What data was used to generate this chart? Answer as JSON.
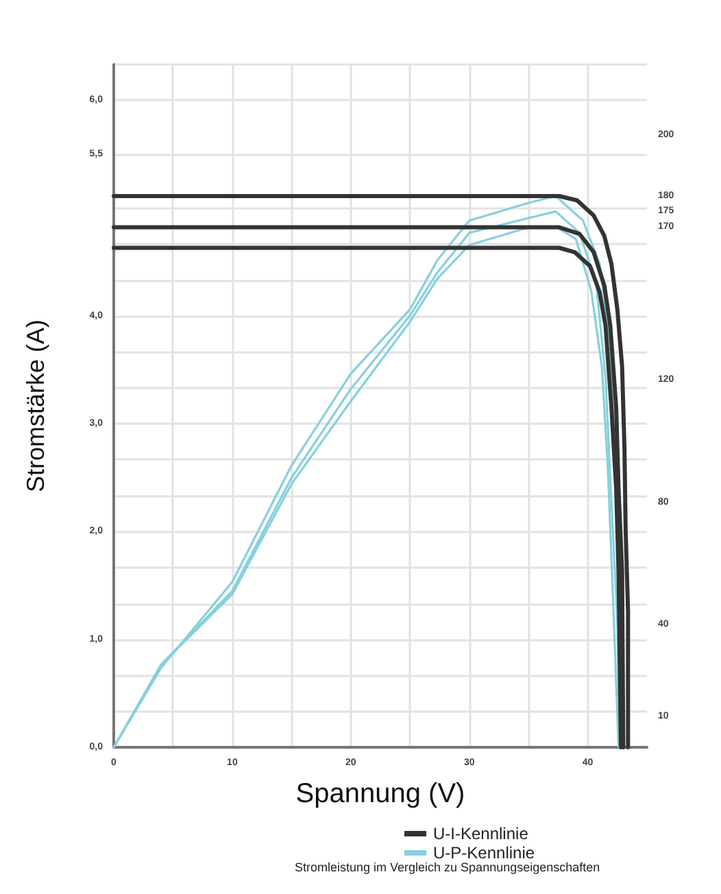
{
  "chart_data": {
    "type": "line",
    "xlabel": "Spannung (V)",
    "ylabel": "Stromstärke (A)",
    "annotations": [
      "Stromleistung im Vergleich zu Spannungseigenschaften"
    ],
    "xlim": [
      0,
      45
    ],
    "ylim": [
      0,
      6.33
    ],
    "y2lim": [
      0,
      223
    ],
    "xticks": [
      0,
      10,
      {
        "value": 15,
        "label": null
      },
      20,
      {
        "value": 25,
        "label": null
      },
      30,
      {
        "value": 35,
        "label": null
      },
      40,
      {
        "value": 5,
        "label": null
      }
    ],
    "yticks": [
      {
        "value": 0,
        "label": "0,0"
      },
      {
        "value": 0.33,
        "label": null
      },
      {
        "value": 0.67,
        "label": null
      },
      {
        "value": 1,
        "label": "1,0"
      },
      {
        "value": 1.33,
        "label": null
      },
      {
        "value": 1.67,
        "label": null
      },
      {
        "value": 2,
        "label": "2,0"
      },
      {
        "value": 2.33,
        "label": null
      },
      {
        "value": 2.67,
        "label": null
      },
      {
        "value": 3,
        "label": "3,0"
      },
      {
        "value": 3.33,
        "label": null
      },
      {
        "value": 3.67,
        "label": null
      },
      {
        "value": 4,
        "label": "4,0"
      },
      {
        "value": 4.33,
        "label": null
      },
      {
        "value": 4.67,
        "label": null
      },
      {
        "value": 5,
        "label": null
      },
      {
        "value": 5.5,
        "label": "5,5"
      },
      {
        "value": 6,
        "label": "6,0"
      },
      {
        "value": 6.33,
        "label": null
      }
    ],
    "y2ticks": [
      10,
      40,
      80,
      120,
      170,
      175,
      180,
      200
    ],
    "grid": true,
    "legend": "bottom",
    "marker": "none",
    "line_style": "solid",
    "series": [
      {
        "name": "U-I-Kennlinie",
        "color": "#333333",
        "x": [
          0,
          37.6,
          39.1,
          40.5,
          41.4,
          42.0,
          42.5,
          42.9,
          43.1,
          43.2,
          43.4,
          43.4
        ],
        "values": [
          5.11,
          5.11,
          5.07,
          4.93,
          4.74,
          4.48,
          4.06,
          3.53,
          2.77,
          2.01,
          1.26,
          0
        ]
      },
      {
        "color": "#333333",
        "x": [
          0,
          37.6,
          39.3,
          40.5,
          41.4,
          41.9,
          42.4,
          42.6,
          42.9,
          43.0
        ],
        "values": [
          4.82,
          4.82,
          4.76,
          4.59,
          4.28,
          3.91,
          3.15,
          2.4,
          1.63,
          0
        ]
      },
      {
        "color": "#333333",
        "x": [
          0,
          37.6,
          38.9,
          40.2,
          41.0,
          41.5,
          42.0,
          42.4,
          42.6,
          42.8
        ],
        "values": [
          4.63,
          4.63,
          4.59,
          4.46,
          4.22,
          3.91,
          3.15,
          2.4,
          1.63,
          0
        ]
      },
      {
        "name": "U-P-Kennlinie",
        "color": "#86d0dc",
        "axis": "y2",
        "x": [
          0,
          4,
          10,
          15,
          20,
          25,
          27.3,
          30,
          35.2,
          37.3,
          39.6,
          41.0,
          41.9,
          42.4,
          42.7,
          42.9
        ],
        "values": [
          0,
          26,
          54,
          92,
          122,
          143,
          159,
          172,
          178,
          180,
          172,
          158,
          131,
          85,
          39,
          0
        ]
      },
      {
        "color": "#86d0dc",
        "axis": "y2",
        "x": [
          0,
          4,
          10,
          15,
          20,
          25,
          27.3,
          30,
          35.2,
          37.3,
          39.3,
          40.7,
          41.5,
          42.0,
          42.5,
          42.7
        ],
        "values": [
          0,
          27,
          51,
          88,
          117,
          141,
          155,
          168,
          173,
          175,
          168,
          152,
          121,
          80,
          41,
          0
        ]
      },
      {
        "color": "#86d0dc",
        "axis": "y2",
        "x": [
          0,
          4,
          10,
          15,
          20,
          25,
          27.3,
          30,
          35.2,
          37.3,
          39.0,
          40.3,
          41.2,
          41.7,
          42.2,
          42.6
        ],
        "values": [
          0,
          27,
          50,
          86,
          113,
          139,
          153,
          164,
          170,
          170,
          166,
          149,
          124,
          91,
          42,
          0
        ]
      }
    ]
  }
}
